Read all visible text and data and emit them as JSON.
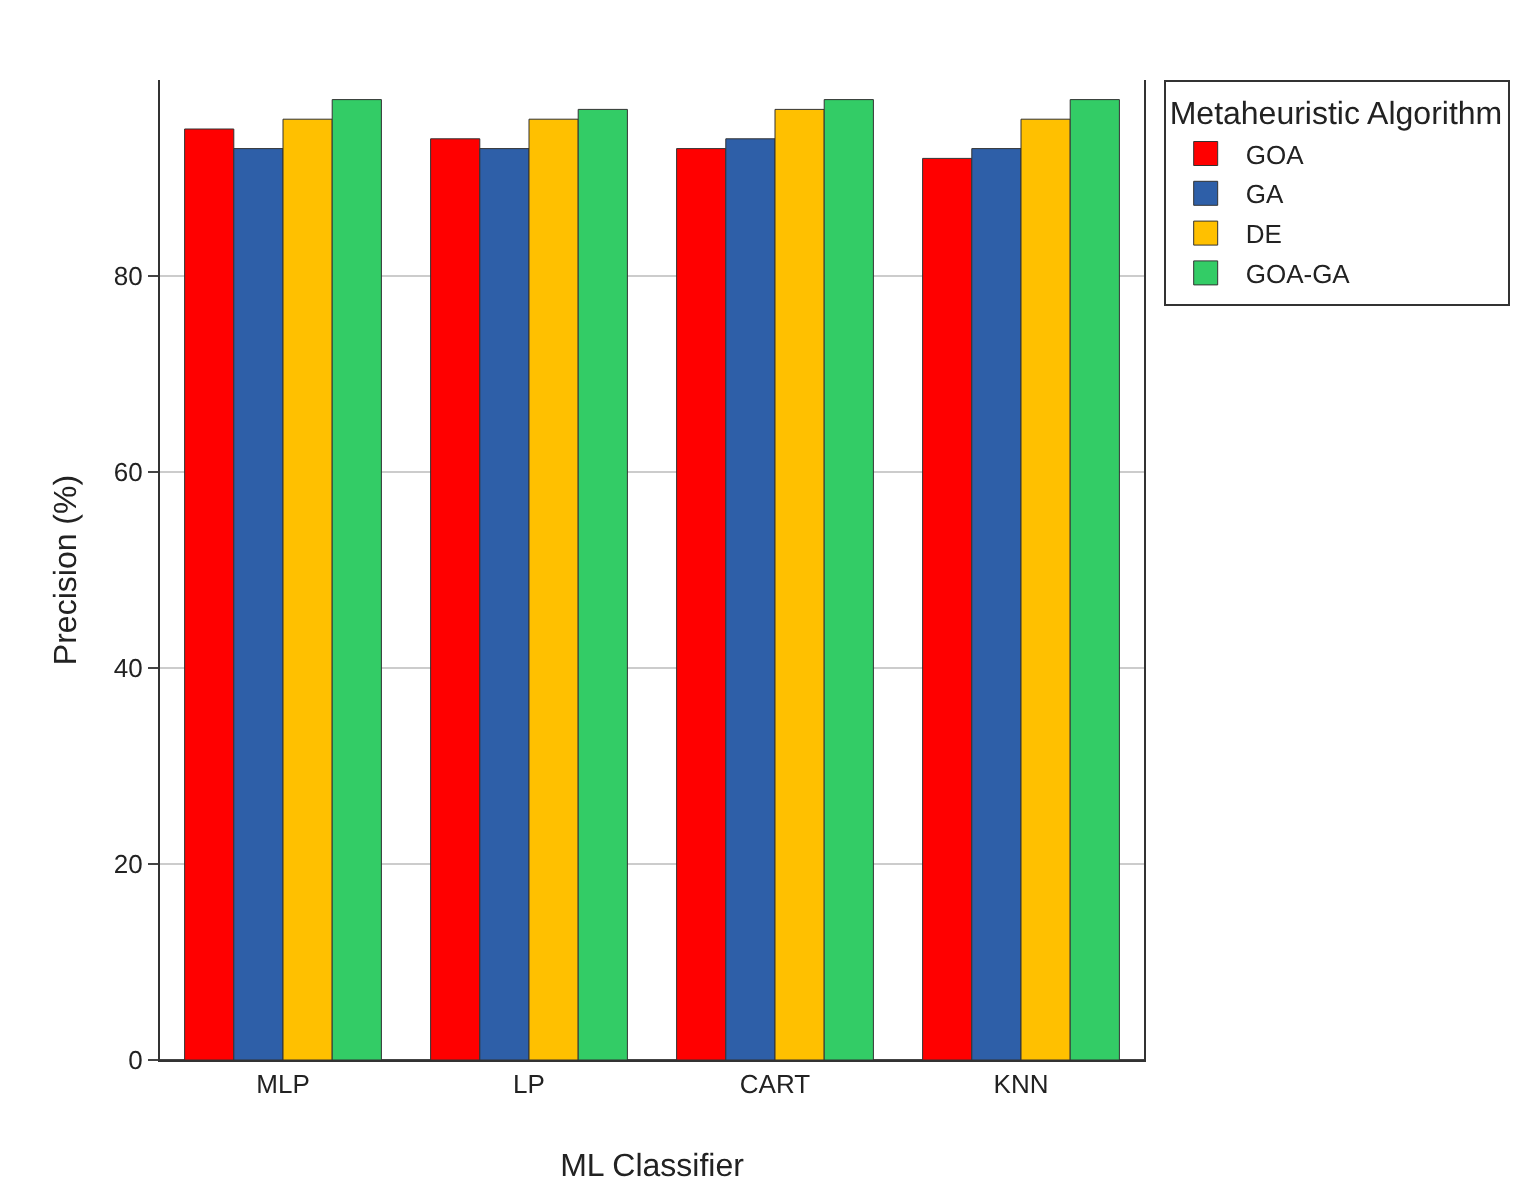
{
  "chart_data": {
    "type": "bar",
    "xlabel": "ML Classifier",
    "ylabel": "Precision (%)",
    "legend_title": "Metaheuristic Algorithm",
    "categories": [
      "MLP",
      "LP",
      "CART",
      "KNN"
    ],
    "series": [
      {
        "name": "GOA",
        "color": "#ff0000",
        "values": [
          95,
          94,
          93,
          92
        ]
      },
      {
        "name": "GA",
        "color": "#2e5fa8",
        "values": [
          93,
          93,
          94,
          93
        ]
      },
      {
        "name": "DE",
        "color": "#ffc000",
        "values": [
          96,
          96,
          97,
          96
        ]
      },
      {
        "name": "GOA-GA",
        "color": "#33cc66",
        "values": [
          98,
          97,
          98,
          98
        ]
      }
    ],
    "ylim": [
      0,
      100
    ],
    "yticks": [
      0,
      20,
      40,
      60,
      80
    ],
    "grid": "y",
    "legend": "top right"
  }
}
